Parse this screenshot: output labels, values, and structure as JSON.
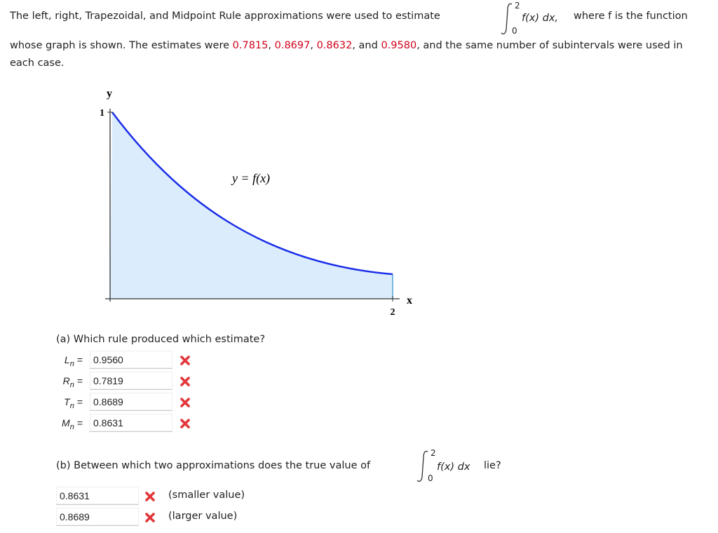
{
  "intro": {
    "line1": "The left, right, Trapezoidal, and Midpoint Rule approximations were used to estimate",
    "integral": {
      "upper": "2",
      "lower": "0",
      "integrand": "f(x) dx,"
    },
    "line1_end": "where f is the function",
    "runs": [
      {
        "text": "whose graph is shown. The estimates were "
      },
      {
        "text": "0.7815",
        "highlight": true
      },
      {
        "text": ", "
      },
      {
        "text": "0.8697",
        "highlight": true
      },
      {
        "text": ", "
      },
      {
        "text": "0.8632",
        "highlight": true
      },
      {
        "text": ", and "
      },
      {
        "text": "0.9580",
        "highlight": true
      },
      {
        "text": ", and the same number of subintervals were used in each case."
      }
    ]
  },
  "graph": {
    "y_axis": "y",
    "x_axis": "x",
    "y_tick": "1",
    "x_tick": "2",
    "curve_label": "y = f(x)"
  },
  "part_a": {
    "question": "(a) Which rule produced which estimate?",
    "rows": [
      {
        "symbol": "L",
        "subscript": "n",
        "relation": "=",
        "answer": "0.9560",
        "status": "incorrect"
      },
      {
        "symbol": "R",
        "subscript": "n",
        "relation": "=",
        "answer": "0.7819",
        "status": "incorrect"
      },
      {
        "symbol": "T",
        "subscript": "n",
        "relation": "=",
        "answer": "0.8689",
        "status": "incorrect"
      },
      {
        "symbol": "M",
        "subscript": "n",
        "relation": "=",
        "answer": "0.8631",
        "status": "incorrect"
      }
    ]
  },
  "part_b": {
    "question": "(b) Between which two approximations does the true value of",
    "integral": {
      "upper": "2",
      "lower": "0",
      "integrand": "f(x) dx"
    },
    "question_end": "lie?",
    "answers": [
      {
        "answer": "0.8631",
        "note": "(smaller value)",
        "status": "incorrect"
      },
      {
        "answer": "0.8689",
        "note": "(larger value)",
        "status": "incorrect"
      }
    ]
  }
}
